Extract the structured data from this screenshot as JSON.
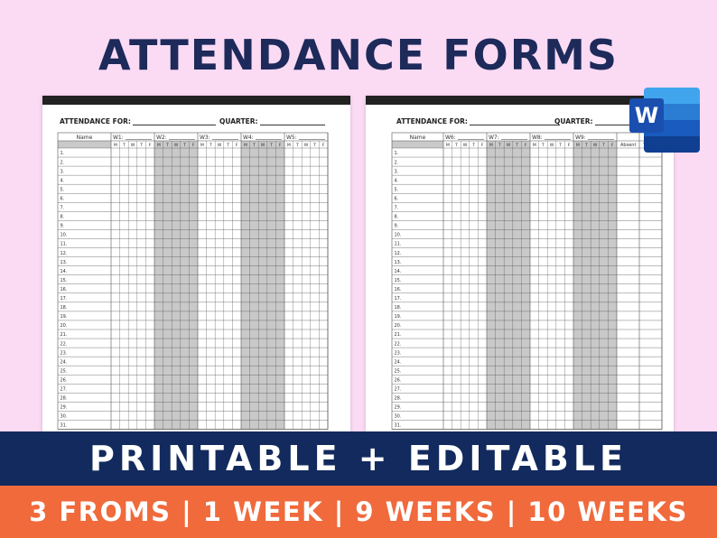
{
  "title": "ATTENDANCE FORMS",
  "banner_primary": "PRINTABLE + EDITABLE",
  "banner_secondary": "3 FROMS | 1 WEEK | 9 WEEKS | 10 WEEKS",
  "word_logo": {
    "icon": "word-icon",
    "letter": "W"
  },
  "colors": {
    "background": "#fbdaf4",
    "title": "#1d2a5a",
    "navy": "#122a5e",
    "orange": "#f06a3c",
    "shade": "#c9c9c9"
  },
  "form_left": {
    "attendance_for_label": "ATTENDANCE FOR:",
    "quarter_label": "QUARTER:",
    "name_header": "Name",
    "weeks": [
      "W1:",
      "W2:",
      "W3:",
      "W4:",
      "W5:"
    ],
    "days": [
      "M",
      "T",
      "W",
      "T",
      "F"
    ],
    "extra_columns": [],
    "rows": [
      "1.",
      "2.",
      "3.",
      "4.",
      "5.",
      "6.",
      "7.",
      "8.",
      "9.",
      "10.",
      "11.",
      "12.",
      "13.",
      "14.",
      "15.",
      "16.",
      "17.",
      "18.",
      "19.",
      "20.",
      "21.",
      "22.",
      "23.",
      "24.",
      "25.",
      "26.",
      "27.",
      "28.",
      "29.",
      "30.",
      "31."
    ]
  },
  "form_right": {
    "attendance_for_label": "ATTENDANCE FOR:",
    "quarter_label": "QUARTER:",
    "name_header": "Name",
    "weeks": [
      "W6:",
      "W7:",
      "W8:",
      "W9:"
    ],
    "days": [
      "M",
      "T",
      "W",
      "T",
      "F"
    ],
    "extra_columns": [
      "Absent",
      "T"
    ],
    "rows": [
      "1.",
      "2.",
      "3.",
      "4.",
      "5.",
      "6.",
      "7.",
      "8.",
      "9.",
      "10.",
      "11.",
      "12.",
      "13.",
      "14.",
      "15.",
      "16.",
      "17.",
      "18.",
      "19.",
      "20.",
      "21.",
      "22.",
      "23.",
      "24.",
      "25.",
      "26.",
      "27.",
      "28.",
      "29.",
      "30.",
      "31."
    ]
  }
}
